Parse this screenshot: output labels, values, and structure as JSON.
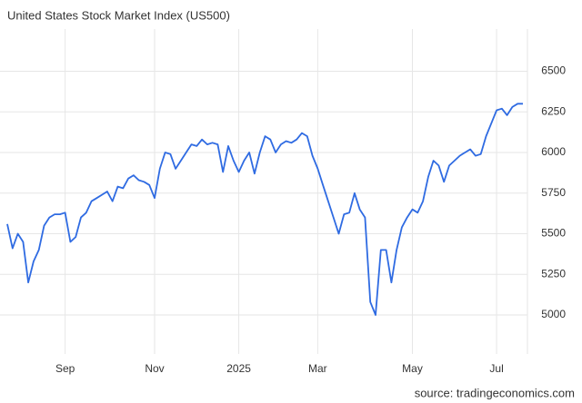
{
  "chart_data": {
    "type": "line",
    "title": "United States Stock Market Index (US500)",
    "source": "source: tradingeconomics.com",
    "categories": [
      null,
      null,
      null,
      null,
      null,
      null,
      null,
      null,
      null,
      null,
      null,
      "Sep",
      null,
      null,
      null,
      null,
      null,
      null,
      null,
      null,
      null,
      null,
      null,
      null,
      null,
      null,
      null,
      null,
      "Nov",
      null,
      null,
      null,
      null,
      null,
      null,
      null,
      null,
      null,
      null,
      null,
      null,
      null,
      null,
      null,
      "2025",
      null,
      null,
      null,
      null,
      null,
      null,
      null,
      null,
      null,
      null,
      null,
      null,
      null,
      null,
      "Mar",
      null,
      null,
      null,
      null,
      null,
      null,
      null,
      null,
      null,
      null,
      null,
      null,
      null,
      null,
      null,
      null,
      null,
      "May",
      null,
      null,
      null,
      null,
      null,
      null,
      null,
      null,
      null,
      null,
      null,
      null,
      null,
      null,
      null,
      "Jul",
      null,
      null,
      null,
      null,
      null
    ],
    "series": [
      {
        "name": "US500",
        "color": "#2f6be2",
        "values": [
          5560,
          5410,
          5500,
          5450,
          5200,
          5330,
          5400,
          5550,
          5600,
          5620,
          5620,
          5630,
          5450,
          5480,
          5600,
          5630,
          5700,
          5720,
          5740,
          5760,
          5700,
          5790,
          5780,
          5840,
          5860,
          5830,
          5820,
          5800,
          5720,
          5900,
          6000,
          5990,
          5900,
          5950,
          6000,
          6050,
          6040,
          6080,
          6050,
          6060,
          6050,
          5880,
          6040,
          5950,
          5880,
          5950,
          6000,
          5870,
          6000,
          6100,
          6080,
          6000,
          6050,
          6070,
          6060,
          6080,
          6120,
          6100,
          5980,
          5900,
          5800,
          5700,
          5600,
          5500,
          5620,
          5630,
          5750,
          5650,
          5600,
          5080,
          5000,
          5400,
          5400,
          5200,
          5400,
          5540,
          5600,
          5650,
          5630,
          5700,
          5850,
          5950,
          5920,
          5820,
          5920,
          5950,
          5980,
          6000,
          6020,
          5980,
          5990,
          6100,
          6180,
          6260,
          6270,
          6230,
          6280,
          6300,
          6300
        ]
      }
    ],
    "ylim": [
      4760,
      6760
    ],
    "yticks": [
      5000,
      5250,
      5500,
      5750,
      6000,
      6250,
      6500
    ],
    "grid": true
  }
}
